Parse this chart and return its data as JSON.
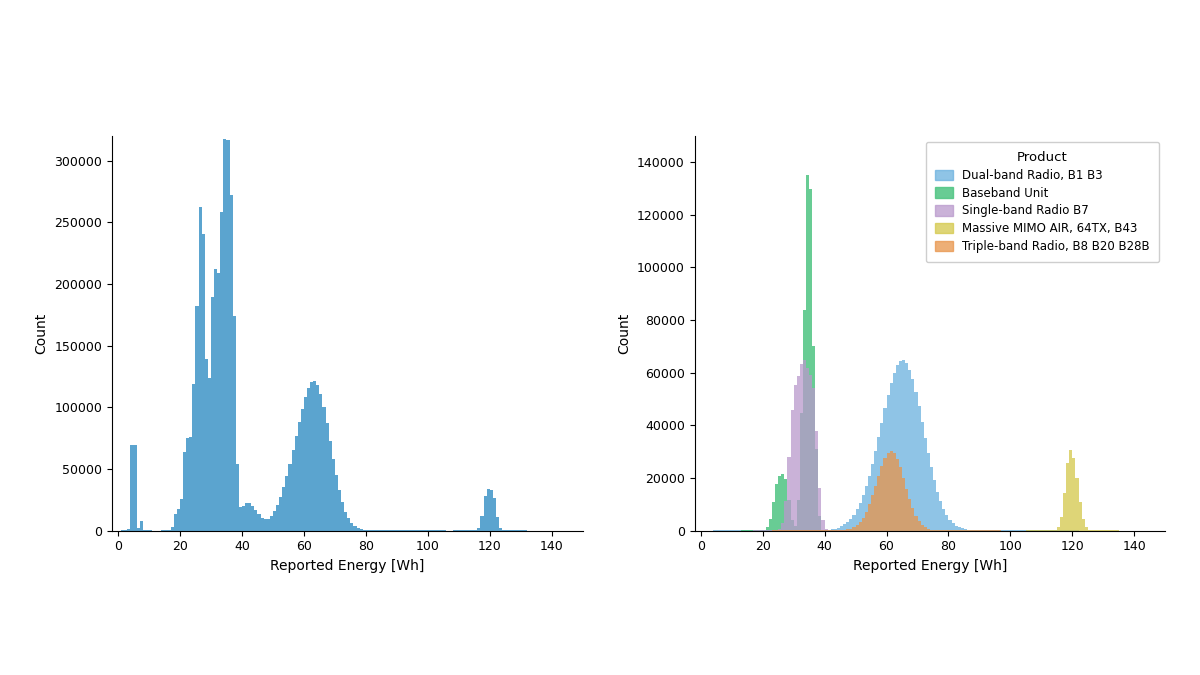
{
  "fig_width": 12.0,
  "fig_height": 6.75,
  "dpi": 100,
  "bg_color": "#ffffff",
  "xlabel": "Reported Energy [Wh]",
  "ylabel": "Count",
  "xlim": [
    -2,
    150
  ],
  "xlim2": [
    -2,
    150
  ],
  "ylim1": [
    0,
    320000
  ],
  "ylim2": [
    0,
    150000
  ],
  "xticks": [
    0,
    20,
    40,
    60,
    80,
    100,
    120,
    140
  ],
  "xticks2": [
    0,
    20,
    40,
    60,
    80,
    100,
    120,
    140
  ],
  "yticks1": [
    0,
    50000,
    100000,
    150000,
    200000,
    250000,
    300000
  ],
  "yticks2": [
    0,
    20000,
    40000,
    60000,
    80000,
    100000,
    120000,
    140000
  ],
  "total_color": "#5ba4cf",
  "total_alpha": 1.0,
  "legend_title": "Product",
  "products": [
    {
      "name": "Dual-band Radio, B1 B3",
      "color": "#6ab0de",
      "alpha": 0.75
    },
    {
      "name": "Baseband Unit",
      "color": "#4dc482",
      "alpha": 0.85
    },
    {
      "name": "Single-band Radio B7",
      "color": "#b998cc",
      "alpha": 0.75
    },
    {
      "name": "Massive MIMO AIR, 64TX, B43",
      "color": "#d4c84a",
      "alpha": 0.75
    },
    {
      "name": "Triple-band Radio, B8 B20 B28B",
      "color": "#e8944a",
      "alpha": 0.75
    }
  ]
}
